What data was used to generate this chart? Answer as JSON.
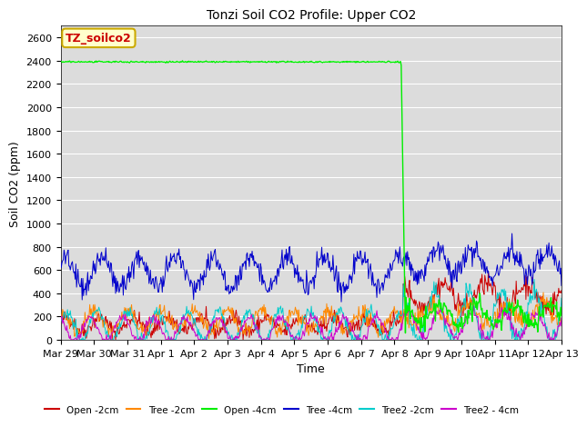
{
  "title": "Tonzi Soil CO2 Profile: Upper CO2",
  "xlabel": "Time",
  "ylabel": "Soil CO2 (ppm)",
  "ylim": [
    0,
    2700
  ],
  "yticks": [
    0,
    200,
    400,
    600,
    800,
    1000,
    1200,
    1400,
    1600,
    1800,
    2000,
    2200,
    2400,
    2600
  ],
  "bg_color": "#dcdcdc",
  "legend_entries": [
    "Open -2cm",
    "Tree -2cm",
    "Open -4cm",
    "Tree -4cm",
    "Tree2 -2cm",
    "Tree2 - 4cm"
  ],
  "legend_colors": [
    "#cc0000",
    "#ff8800",
    "#00ee00",
    "#0000cc",
    "#00cccc",
    "#cc00cc"
  ],
  "label_box_text": "TZ_soilco2",
  "label_box_bg": "#ffffcc",
  "label_box_border": "#ccaa00",
  "label_box_text_color": "#cc0000",
  "tick_days": [
    0,
    1,
    2,
    3,
    4,
    5,
    6,
    7,
    8,
    9,
    10,
    11,
    12,
    13,
    14,
    15
  ],
  "tick_labels": [
    "Mar 29",
    "Mar 30",
    "Mar 31",
    "Apr 1",
    "Apr 2",
    "Apr 3",
    "Apr 4",
    "Apr 5",
    "Apr 6",
    "Apr 7",
    "Apr 8",
    "Apr 9",
    "Apr 10",
    "Apr 11",
    "Apr 12",
    "Apr 13"
  ],
  "seed": 42,
  "n_points": 720,
  "total_days": 15.0,
  "drop_day": 10.25
}
